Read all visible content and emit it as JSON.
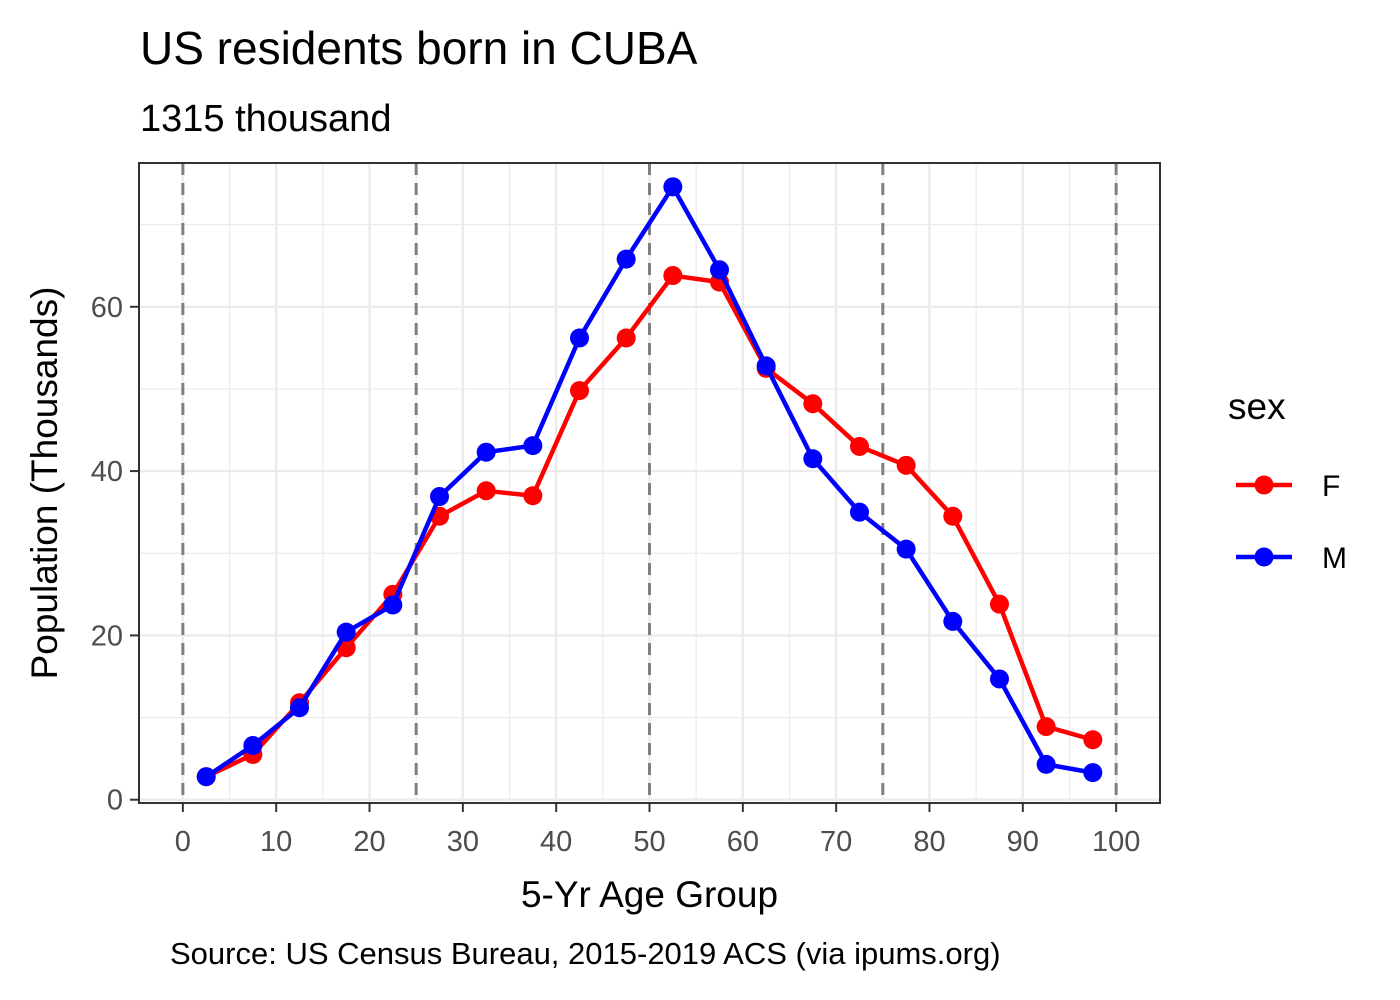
{
  "chart_data": {
    "type": "line",
    "title": "US residents born in CUBA",
    "subtitle": "1315 thousand",
    "caption": "Source: US Census Bureau, 2015-2019 ACS (via ipums.org)",
    "xlabel": "5-Yr Age Group",
    "ylabel": "Population (Thousands)",
    "xlim": [
      0,
      100
    ],
    "ylim": [
      0,
      75
    ],
    "x_ticks": [
      0,
      10,
      20,
      30,
      40,
      50,
      60,
      70,
      80,
      90,
      100
    ],
    "y_ticks": [
      0,
      20,
      40,
      60
    ],
    "reference_lines_x": [
      0,
      25,
      50,
      75,
      100
    ],
    "grid": true,
    "legend": {
      "title": "sex",
      "position": "right"
    },
    "x": [
      2.5,
      7.5,
      12.5,
      17.5,
      22.5,
      27.5,
      32.5,
      37.5,
      42.5,
      47.5,
      52.5,
      57.5,
      62.5,
      67.5,
      72.5,
      77.5,
      82.5,
      87.5,
      92.5,
      97.5
    ],
    "series": [
      {
        "name": "F",
        "color": "#ff0000",
        "values": [
          2.8,
          5.5,
          11.8,
          18.5,
          25.0,
          34.5,
          37.6,
          37.0,
          49.8,
          56.2,
          63.8,
          63.0,
          52.5,
          48.2,
          43.0,
          40.7,
          34.5,
          23.8,
          8.9,
          7.3
        ]
      },
      {
        "name": "M",
        "color": "#0000ff",
        "values": [
          2.8,
          6.6,
          11.2,
          20.4,
          23.7,
          36.9,
          42.3,
          43.1,
          56.2,
          65.8,
          74.6,
          64.5,
          52.8,
          41.5,
          35.0,
          30.5,
          21.7,
          14.7,
          4.3,
          3.3
        ]
      }
    ]
  }
}
